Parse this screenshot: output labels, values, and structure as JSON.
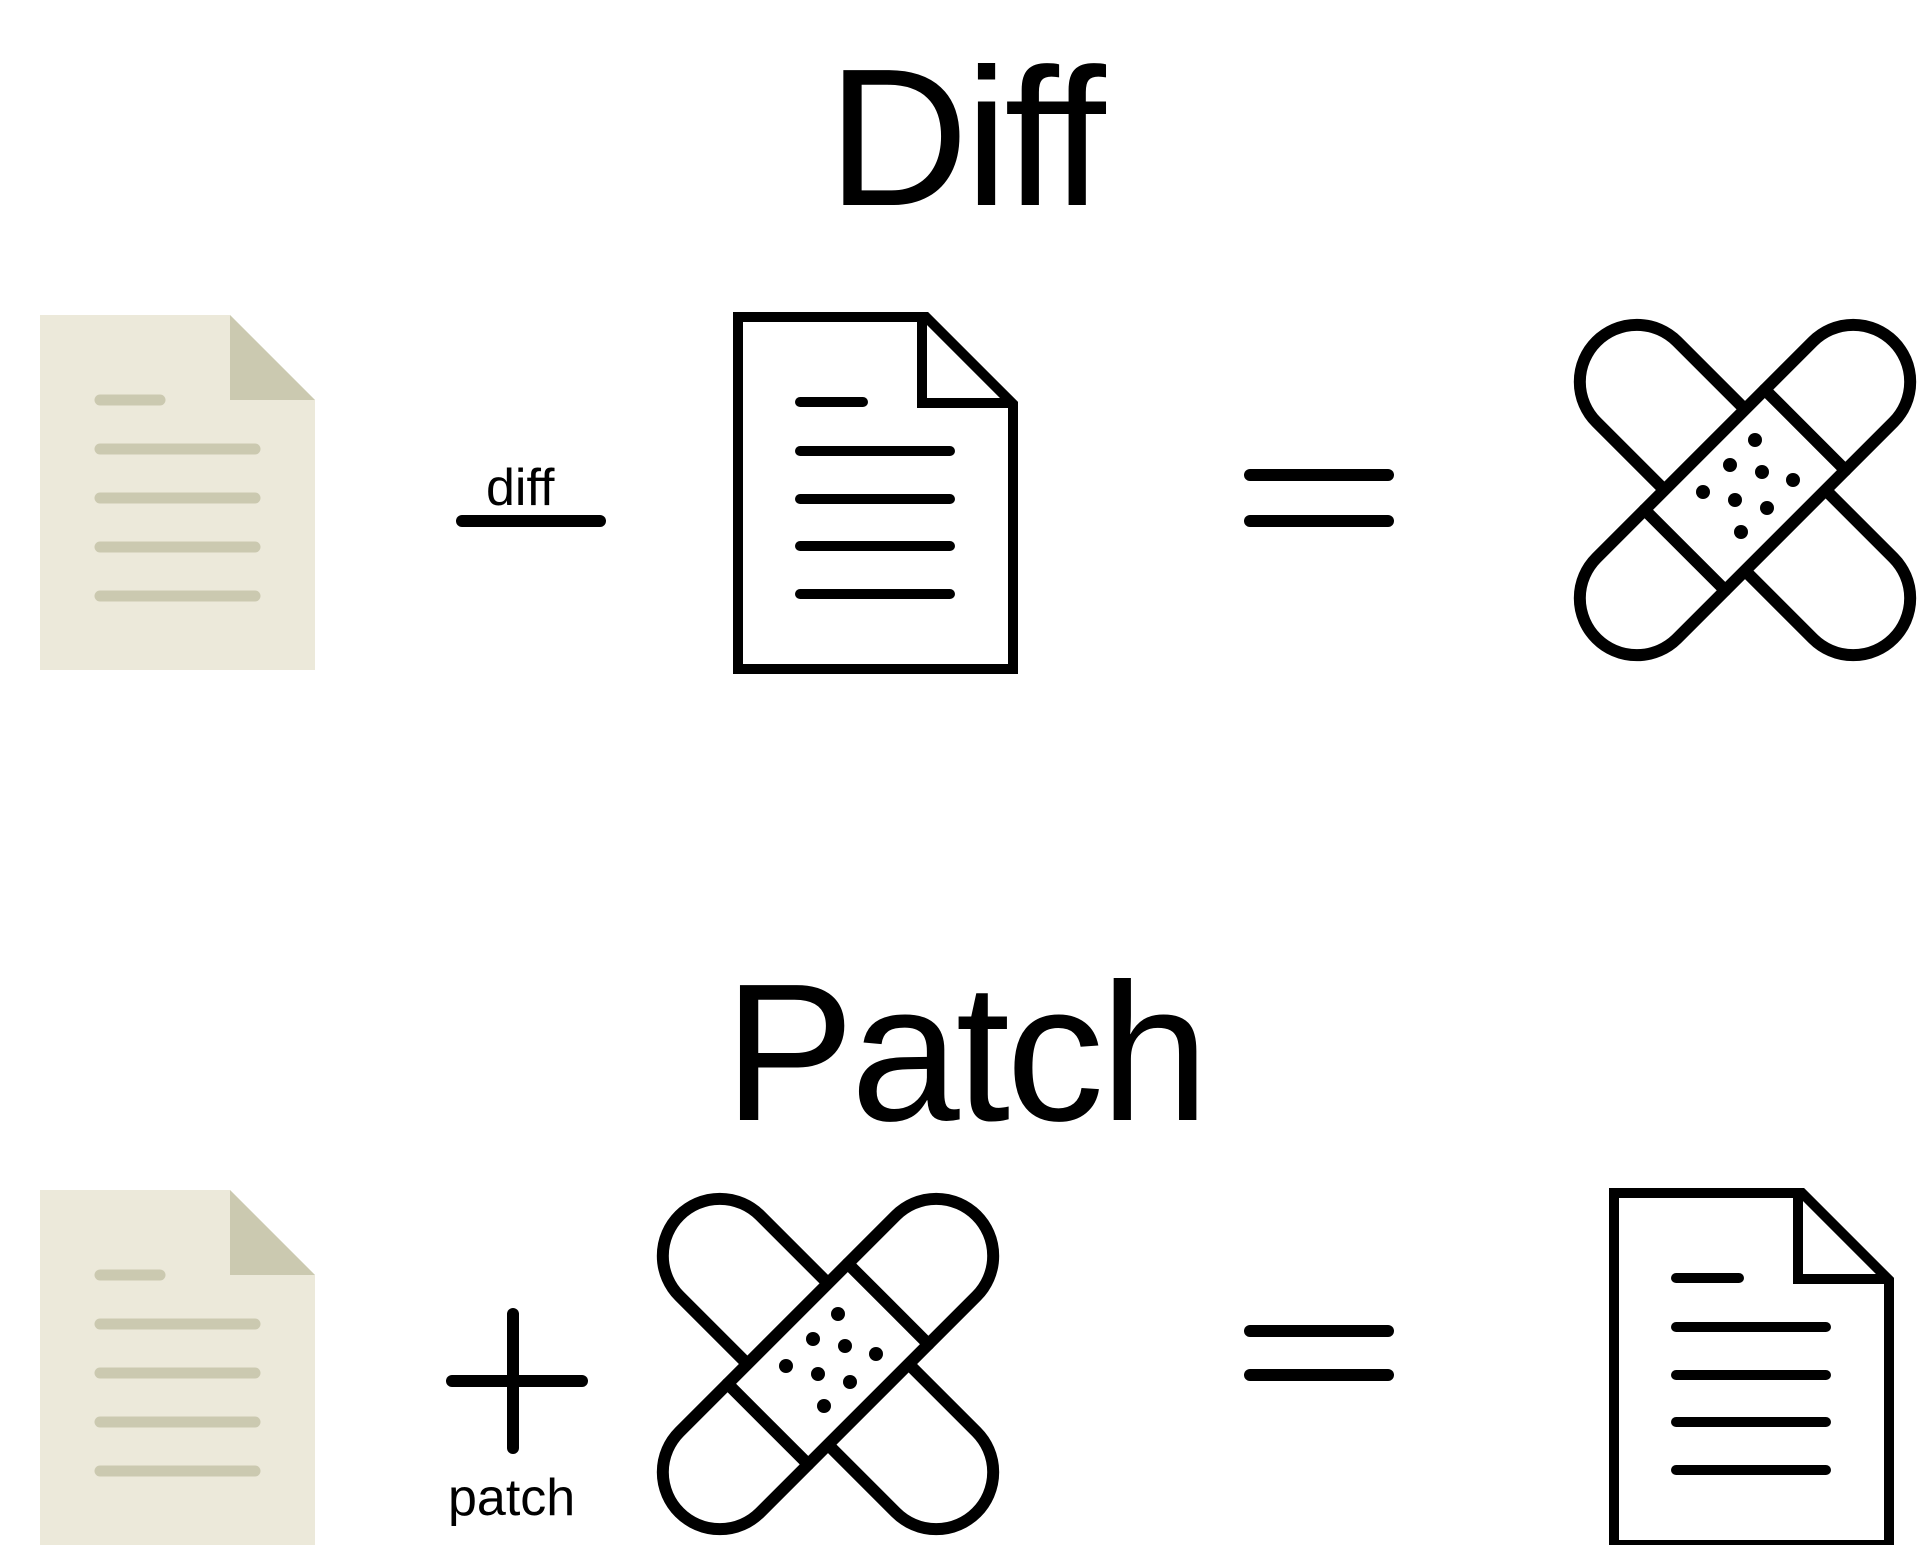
{
  "diff_section": {
    "title": "Diff",
    "operator_label": "diff",
    "operator": "minus",
    "result": "bandage-icon"
  },
  "patch_section": {
    "title": "Patch",
    "operator_label": "patch",
    "operator": "plus",
    "result": "document-outline-icon"
  },
  "colors": {
    "filled_doc_bg": "#ECE9DA",
    "filled_doc_accent": "#CBC9B0",
    "stroke": "#000000"
  }
}
